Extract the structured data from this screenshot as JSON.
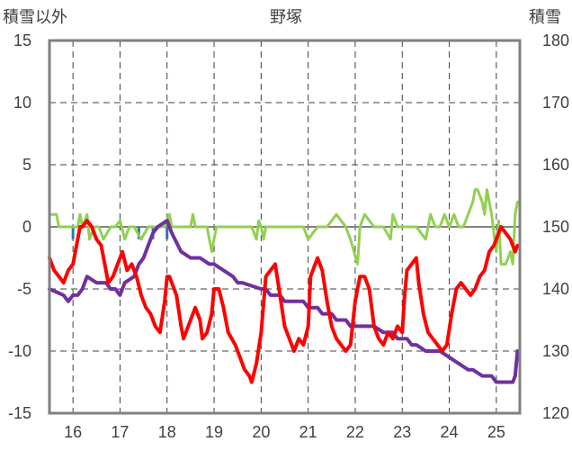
{
  "chart_data": {
    "type": "line",
    "title": "野塚",
    "ylabel_left": "積雪以外",
    "ylabel_right": "積雪",
    "ylim_left": [
      -15,
      15
    ],
    "ylim_right": [
      120,
      180
    ],
    "yticks_left": [
      "15",
      "10",
      "5",
      "0",
      "-5",
      "-10",
      "-15"
    ],
    "yticks_right": [
      "180",
      "170",
      "160",
      "150",
      "140",
      "130",
      "120"
    ],
    "xticks": [
      "16",
      "17",
      "18",
      "19",
      "20",
      "21",
      "22",
      "23",
      "24",
      "25"
    ],
    "xlim": [
      15.5,
      25.5
    ],
    "grid": true,
    "colors": {
      "temperature": "#ff0000",
      "snow_depth": "#7030a0",
      "green_series": "#92d050",
      "blue_series": "#2e75b6",
      "axis": "#808080",
      "zero_line": "#808080"
    },
    "series": [
      {
        "name": "temperature",
        "axis": "left",
        "color": "#ff0000",
        "x": [
          15.5,
          15.6,
          15.7,
          15.8,
          15.9,
          16.0,
          16.1,
          16.15,
          16.2,
          16.3,
          16.4,
          16.5,
          16.6,
          16.7,
          16.75,
          16.85,
          16.95,
          17.05,
          17.15,
          17.25,
          17.35,
          17.45,
          17.55,
          17.65,
          17.75,
          17.85,
          17.95,
          18.0,
          18.05,
          18.1,
          18.2,
          18.3,
          18.35,
          18.45,
          18.55,
          18.6,
          18.7,
          18.75,
          18.85,
          18.95,
          19.0,
          19.1,
          19.2,
          19.3,
          19.45,
          19.55,
          19.65,
          19.75,
          19.8,
          19.9,
          20.0,
          20.1,
          20.2,
          20.3,
          20.4,
          20.5,
          20.6,
          20.7,
          20.8,
          20.9,
          21.0,
          21.05,
          21.1,
          21.2,
          21.3,
          21.4,
          21.5,
          21.6,
          21.7,
          21.8,
          21.9,
          22.0,
          22.1,
          22.2,
          22.3,
          22.4,
          22.5,
          22.6,
          22.7,
          22.8,
          22.9,
          23.0,
          23.05,
          23.1,
          23.2,
          23.3,
          23.35,
          23.45,
          23.55,
          23.65,
          23.75,
          23.85,
          23.95,
          24.05,
          24.15,
          24.25,
          24.35,
          24.45,
          24.55,
          24.65,
          24.75,
          24.85,
          24.95,
          25.05,
          25.1,
          25.2,
          25.3,
          25.4,
          25.45
        ],
        "y": [
          -2.5,
          -3.5,
          -4,
          -4.5,
          -3.5,
          -3,
          -1,
          0,
          0,
          0.5,
          0,
          -1,
          -1.5,
          -3.5,
          -4.5,
          -4,
          -3,
          -2,
          -3.5,
          -3,
          -4,
          -5.5,
          -6.5,
          -7,
          -8,
          -8.5,
          -6,
          -4,
          -4,
          -4.5,
          -5.5,
          -8,
          -9,
          -8,
          -7,
          -6.5,
          -7.5,
          -9,
          -8.5,
          -7,
          -5,
          -5,
          -6.5,
          -8.5,
          -9.5,
          -10.5,
          -11.5,
          -12,
          -12.5,
          -11,
          -8.5,
          -4,
          -3.5,
          -3,
          -5.5,
          -8,
          -9,
          -10,
          -9,
          -9.5,
          -8,
          -4,
          -3.5,
          -2.5,
          -3.5,
          -6,
          -8,
          -9,
          -9.5,
          -10,
          -9.5,
          -6,
          -4,
          -4,
          -5,
          -8,
          -9,
          -9.5,
          -8.5,
          -9,
          -8,
          -8.5,
          -5.5,
          -3.5,
          -3,
          -2.5,
          -4.5,
          -7,
          -8.5,
          -9,
          -9.5,
          -10,
          -9.5,
          -7,
          -5,
          -4.5,
          -5,
          -5.5,
          -5,
          -4,
          -3.5,
          -2,
          -1.5,
          -0.5,
          0,
          -0.5,
          -1,
          -2,
          -1.5
        ]
      },
      {
        "name": "green_series",
        "axis": "left",
        "color": "#92d050",
        "x": [
          15.5,
          15.65,
          15.7,
          15.85,
          16.0,
          16.1,
          16.15,
          16.2,
          16.3,
          16.35,
          16.45,
          16.55,
          16.65,
          16.8,
          16.9,
          17.0,
          17.1,
          17.2,
          17.3,
          17.45,
          17.6,
          17.8,
          17.95,
          18.0,
          18.05,
          18.1,
          18.2,
          18.35,
          18.5,
          18.55,
          18.6,
          18.75,
          18.85,
          18.9,
          18.95,
          19.0,
          19.05,
          19.1,
          19.15,
          19.5,
          19.8,
          19.9,
          19.95,
          20.0,
          20.05,
          20.1,
          20.3,
          20.55,
          20.9,
          21.0,
          21.2,
          21.4,
          21.6,
          21.8,
          21.9,
          22.05,
          22.1,
          22.2,
          22.4,
          22.6,
          22.75,
          22.8,
          22.9,
          23.0,
          23.1,
          23.3,
          23.5,
          23.6,
          23.7,
          23.8,
          23.9,
          24.0,
          24.1,
          24.2,
          24.3,
          24.4,
          24.5,
          24.55,
          24.6,
          24.7,
          24.75,
          24.8,
          24.9,
          25.0,
          25.05,
          25.1,
          25.2,
          25.3,
          25.35,
          25.4,
          25.45
        ],
        "y": [
          1,
          1,
          0,
          0,
          0,
          0,
          1,
          0,
          1,
          -1,
          0,
          0,
          -1,
          0,
          0,
          0.5,
          -1,
          0,
          0,
          -1,
          0,
          0,
          0,
          0.5,
          1,
          0,
          0,
          0,
          0,
          1,
          0,
          0,
          0,
          -1,
          -2,
          -1,
          0,
          0,
          0,
          0,
          0,
          -1,
          0.5,
          0,
          -1,
          0,
          0,
          0,
          0,
          -1,
          0,
          0,
          1,
          0,
          -1,
          -3,
          0,
          1,
          0,
          0,
          -1,
          1,
          0,
          0,
          0,
          0,
          -1,
          1,
          0,
          0,
          1,
          0,
          1,
          0,
          0,
          1,
          2,
          3,
          3,
          2,
          1,
          3,
          1,
          -2,
          0.5,
          -3,
          -3,
          -2,
          -3,
          1,
          2
        ]
      },
      {
        "name": "blue_series",
        "axis": "left",
        "color": "#2e75b6",
        "x": [
          16.0,
          16.0,
          17.4,
          17.4,
          17.7,
          17.7,
          18.0,
          18.0
        ],
        "y": [
          0,
          -1,
          0,
          -1,
          0,
          -1,
          0,
          -1
        ]
      },
      {
        "name": "snow_depth",
        "axis": "right",
        "color": "#7030a0",
        "x": [
          15.5,
          15.8,
          15.9,
          16.0,
          16.1,
          16.2,
          16.3,
          16.5,
          16.7,
          16.8,
          16.9,
          17.0,
          17.1,
          17.3,
          17.4,
          17.5,
          17.6,
          17.7,
          17.8,
          18.0,
          18.1,
          18.3,
          18.5,
          18.7,
          18.9,
          19.0,
          19.2,
          19.4,
          19.5,
          19.6,
          20.0,
          20.1,
          20.2,
          20.4,
          20.5,
          20.9,
          21.0,
          21.2,
          21.3,
          21.5,
          21.6,
          21.8,
          21.9,
          22.1,
          22.2,
          22.4,
          22.6,
          22.8,
          22.9,
          23.1,
          23.2,
          23.3,
          23.5,
          23.8,
          24.0,
          24.2,
          24.4,
          24.5,
          24.7,
          24.9,
          25.0,
          25.1,
          25.35,
          25.4,
          25.45
        ],
        "y": [
          140,
          139,
          138,
          139,
          139,
          140,
          142,
          141,
          141,
          140,
          140,
          139,
          141,
          142,
          144,
          145,
          147,
          149,
          150,
          151,
          149,
          146,
          145,
          145,
          144,
          144,
          143,
          142,
          141,
          141,
          140,
          140,
          139,
          139,
          138,
          138,
          137,
          137,
          136,
          136,
          135,
          135,
          134,
          134,
          134,
          134,
          133,
          133,
          132,
          132,
          131,
          131,
          130,
          130,
          129,
          128,
          127,
          127,
          126,
          126,
          125,
          125,
          125,
          126,
          130
        ]
      }
    ]
  }
}
